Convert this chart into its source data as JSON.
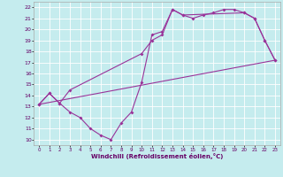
{
  "xlabel": "Windchill (Refroidissement éolien,°C)",
  "background_color": "#c5ecee",
  "line_color": "#993399",
  "grid_color": "#ffffff",
  "xlim": [
    -0.5,
    23.5
  ],
  "ylim": [
    9.5,
    22.5
  ],
  "line1_x": [
    0,
    1,
    2,
    3,
    4,
    5,
    6,
    7,
    8,
    9,
    10,
    11,
    12,
    13,
    14,
    15,
    16,
    17,
    18,
    19,
    20,
    21,
    22,
    23
  ],
  "line1_y": [
    13.2,
    14.2,
    13.3,
    12.5,
    12.0,
    11.0,
    10.4,
    10.0,
    11.5,
    12.5,
    15.2,
    19.5,
    19.8,
    21.8,
    21.3,
    21.0,
    21.3,
    21.5,
    21.8,
    21.8,
    21.5,
    21.0,
    19.0,
    17.2
  ],
  "line2_x": [
    0,
    23
  ],
  "line2_y": [
    13.2,
    17.2
  ],
  "line3_x": [
    0,
    1,
    2,
    3,
    10,
    11,
    12,
    13,
    14,
    20,
    21,
    22,
    23
  ],
  "line3_y": [
    13.2,
    14.2,
    13.3,
    14.5,
    17.8,
    19.0,
    19.5,
    21.8,
    21.3,
    21.5,
    21.0,
    19.0,
    17.2
  ]
}
